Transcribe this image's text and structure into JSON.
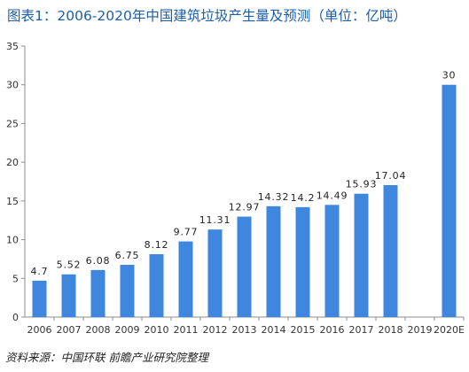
{
  "chart_data": {
    "type": "bar",
    "title": "图表1：2006-2020年中国建筑垃圾产生量及预测（单位：亿吨）",
    "categories": [
      "2006",
      "2007",
      "2008",
      "2009",
      "2010",
      "2011",
      "2012",
      "2013",
      "2014",
      "2015",
      "2016",
      "2017",
      "2018",
      "2019",
      "2020E"
    ],
    "values": [
      4.7,
      5.52,
      6.08,
      6.75,
      8.12,
      9.77,
      11.31,
      12.97,
      14.32,
      14.2,
      14.49,
      15.93,
      17.04,
      null,
      30
    ],
    "value_labels": [
      "4.7",
      "5.52",
      "6.08",
      "6.75",
      "8.12",
      "9.77",
      "11.31",
      "12.97",
      "14.32",
      "14.2",
      "14.49",
      "15.93",
      "17.04",
      "",
      "30"
    ],
    "yticks": [
      "0",
      "5",
      "10",
      "15",
      "20",
      "25",
      "30",
      "35"
    ],
    "ylim": [
      0,
      35
    ],
    "xlabel": "",
    "ylabel": "",
    "grid": false,
    "bar_color": "#3f86de",
    "title_color": "#1d5fa8"
  },
  "source": {
    "label": "资料来源：",
    "text": "中国环联",
    "publisher": "前瞻产业研究院整理"
  }
}
